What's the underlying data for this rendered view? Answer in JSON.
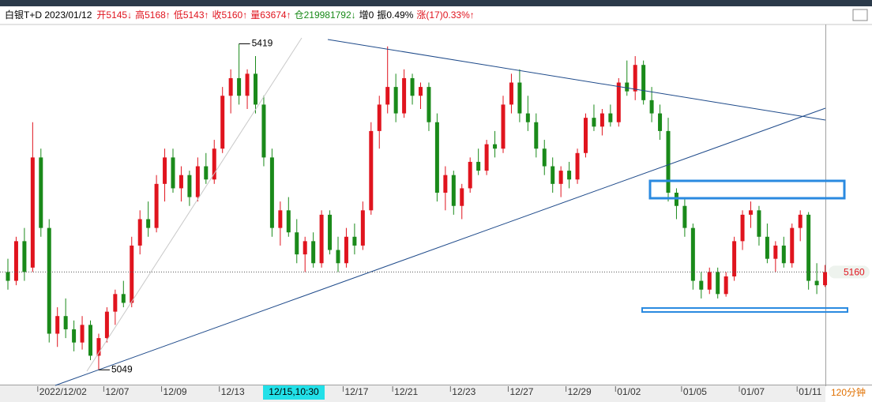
{
  "chart_data": {
    "type": "candlestick",
    "title": "白银T+D 2023/01/12",
    "header": [
      {
        "text": "开5145↓",
        "color": "#e0141e"
      },
      {
        "text": "高5168↑",
        "color": "#e0141e"
      },
      {
        "text": "低5143↑",
        "color": "#e0141e"
      },
      {
        "text": "收5160↑",
        "color": "#e0141e"
      },
      {
        "text": "量63674↑",
        "color": "#e0141e"
      },
      {
        "text": "仓219981792↓",
        "color": "#1a8a1a"
      },
      {
        "text": "增0",
        "color": "#000000"
      },
      {
        "text": "振0.49%",
        "color": "#000000"
      },
      {
        "text": "涨(17)0.33%↑",
        "color": "#e0141e"
      }
    ],
    "period": "120分钟",
    "cursor_label": "12/15,10:30",
    "up_color": "#e0141e",
    "down_color": "#1a8a1a",
    "ylim": [
      5034,
      5440
    ],
    "last_price": 5160,
    "high_marker": 5419,
    "low_marker": 5049,
    "categories": [
      null,
      null,
      null,
      null,
      "2022/12/02",
      null,
      null,
      null,
      null,
      null,
      null,
      null,
      "12/07",
      null,
      null,
      null,
      null,
      null,
      null,
      "12/09",
      null,
      null,
      null,
      null,
      null,
      null,
      "12/13",
      null,
      null,
      null,
      null,
      null,
      null,
      null,
      null,
      null,
      null,
      null,
      null,
      null,
      null,
      "12/17",
      null,
      null,
      null,
      null,
      null,
      "12/21",
      null,
      null,
      null,
      null,
      null,
      null,
      "12/23",
      null,
      null,
      null,
      null,
      null,
      null,
      "12/27",
      null,
      null,
      null,
      null,
      null,
      null,
      "12/29",
      null,
      null,
      null,
      null,
      null,
      "01/02",
      null,
      null,
      null,
      null,
      null,
      null,
      null,
      "01/05",
      null,
      null,
      null,
      null,
      null,
      null,
      "01/07",
      null,
      null,
      null,
      null,
      null,
      null,
      "01/11",
      null,
      null,
      null
    ],
    "ohlc": [
      [
        5160,
        5175,
        5140,
        5150
      ],
      [
        5150,
        5200,
        5145,
        5195
      ],
      [
        5195,
        5210,
        5150,
        5160
      ],
      [
        5165,
        5330,
        5160,
        5290
      ],
      [
        5290,
        5300,
        5200,
        5210
      ],
      [
        5210,
        5220,
        5080,
        5090
      ],
      [
        5090,
        5120,
        5075,
        5110
      ],
      [
        5110,
        5130,
        5085,
        5095
      ],
      [
        5095,
        5105,
        5070,
        5080
      ],
      [
        5080,
        5110,
        5072,
        5100
      ],
      [
        5100,
        5105,
        5060,
        5065
      ],
      [
        5065,
        5090,
        5049,
        5085
      ],
      [
        5085,
        5120,
        5080,
        5115
      ],
      [
        5115,
        5140,
        5100,
        5135
      ],
      [
        5135,
        5150,
        5120,
        5125
      ],
      [
        5125,
        5200,
        5120,
        5190
      ],
      [
        5190,
        5230,
        5180,
        5220
      ],
      [
        5220,
        5240,
        5200,
        5210
      ],
      [
        5210,
        5270,
        5205,
        5260
      ],
      [
        5260,
        5300,
        5240,
        5290
      ],
      [
        5290,
        5300,
        5250,
        5255
      ],
      [
        5255,
        5280,
        5240,
        5270
      ],
      [
        5270,
        5275,
        5235,
        5245
      ],
      [
        5245,
        5290,
        5240,
        5280
      ],
      [
        5280,
        5295,
        5260,
        5265
      ],
      [
        5265,
        5310,
        5260,
        5300
      ],
      [
        5300,
        5370,
        5295,
        5360
      ],
      [
        5360,
        5390,
        5340,
        5380
      ],
      [
        5380,
        5419,
        5350,
        5360
      ],
      [
        5360,
        5390,
        5345,
        5385
      ],
      [
        5385,
        5405,
        5340,
        5350
      ],
      [
        5350,
        5360,
        5280,
        5290
      ],
      [
        5290,
        5300,
        5200,
        5210
      ],
      [
        5210,
        5240,
        5190,
        5230
      ],
      [
        5230,
        5245,
        5200,
        5205
      ],
      [
        5205,
        5220,
        5170,
        5180
      ],
      [
        5180,
        5200,
        5160,
        5195
      ],
      [
        5195,
        5205,
        5165,
        5170
      ],
      [
        5170,
        5230,
        5165,
        5225
      ],
      [
        5225,
        5230,
        5180,
        5185
      ],
      [
        5185,
        5200,
        5160,
        5170
      ],
      [
        5170,
        5210,
        5165,
        5200
      ],
      [
        5200,
        5215,
        5180,
        5190
      ],
      [
        5190,
        5240,
        5185,
        5230
      ],
      [
        5230,
        5330,
        5225,
        5320
      ],
      [
        5320,
        5360,
        5300,
        5350
      ],
      [
        5350,
        5416,
        5340,
        5370
      ],
      [
        5370,
        5385,
        5330,
        5340
      ],
      [
        5340,
        5390,
        5335,
        5380
      ],
      [
        5380,
        5385,
        5350,
        5360
      ],
      [
        5360,
        5375,
        5345,
        5370
      ],
      [
        5370,
        5375,
        5320,
        5330
      ],
      [
        5330,
        5340,
        5240,
        5250
      ],
      [
        5250,
        5280,
        5230,
        5270
      ],
      [
        5270,
        5275,
        5225,
        5235
      ],
      [
        5235,
        5260,
        5220,
        5255
      ],
      [
        5255,
        5290,
        5250,
        5285
      ],
      [
        5285,
        5300,
        5270,
        5275
      ],
      [
        5275,
        5310,
        5270,
        5305
      ],
      [
        5305,
        5320,
        5290,
        5300
      ],
      [
        5300,
        5360,
        5295,
        5350
      ],
      [
        5350,
        5385,
        5340,
        5375
      ],
      [
        5375,
        5390,
        5330,
        5340
      ],
      [
        5340,
        5360,
        5320,
        5330
      ],
      [
        5330,
        5340,
        5290,
        5300
      ],
      [
        5300,
        5310,
        5270,
        5280
      ],
      [
        5280,
        5290,
        5250,
        5260
      ],
      [
        5260,
        5280,
        5245,
        5275
      ],
      [
        5275,
        5285,
        5255,
        5265
      ],
      [
        5265,
        5300,
        5260,
        5295
      ],
      [
        5295,
        5340,
        5290,
        5335
      ],
      [
        5335,
        5350,
        5320,
        5325
      ],
      [
        5325,
        5345,
        5315,
        5340
      ],
      [
        5340,
        5350,
        5325,
        5330
      ],
      [
        5330,
        5380,
        5325,
        5375
      ],
      [
        5375,
        5400,
        5360,
        5365
      ],
      [
        5365,
        5405,
        5355,
        5395
      ],
      [
        5395,
        5400,
        5350,
        5355
      ],
      [
        5355,
        5370,
        5330,
        5340
      ],
      [
        5340,
        5350,
        5310,
        5320
      ],
      [
        5320,
        5335,
        5240,
        5250
      ],
      [
        5250,
        5255,
        5220,
        5235
      ],
      [
        5235,
        5245,
        5200,
        5210
      ],
      [
        5210,
        5215,
        5140,
        5150
      ],
      [
        5150,
        5160,
        5130,
        5140
      ],
      [
        5140,
        5165,
        5135,
        5160
      ],
      [
        5160,
        5165,
        5130,
        5135
      ],
      [
        5135,
        5160,
        5132,
        5155
      ],
      [
        5155,
        5200,
        5150,
        5195
      ],
      [
        5195,
        5230,
        5185,
        5225
      ],
      [
        5225,
        5240,
        5210,
        5230
      ],
      [
        5230,
        5235,
        5190,
        5200
      ],
      [
        5200,
        5215,
        5170,
        5175
      ],
      [
        5175,
        5195,
        5160,
        5190
      ],
      [
        5190,
        5200,
        5165,
        5170
      ],
      [
        5170,
        5215,
        5165,
        5210
      ],
      [
        5210,
        5230,
        5195,
        5225
      ],
      [
        5225,
        5228,
        5140,
        5150
      ],
      [
        5150,
        5170,
        5135,
        5145
      ],
      [
        5145,
        5168,
        5143,
        5160
      ]
    ]
  }
}
